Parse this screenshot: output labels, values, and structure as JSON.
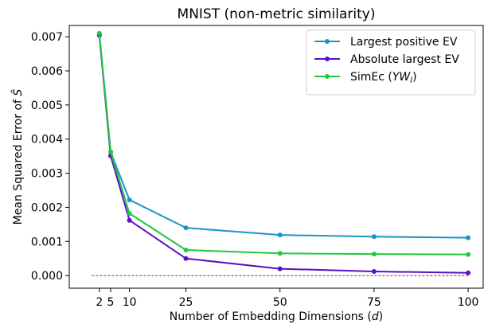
{
  "chart_data": {
    "type": "line",
    "title": "MNIST (non-metric similarity)",
    "xlabel": "Number of Embedding Dimensions (d)",
    "ylabel": "Mean Squared Error of Ŝ",
    "x": [
      2,
      5,
      10,
      25,
      50,
      75,
      100
    ],
    "xticks": [
      2,
      5,
      10,
      25,
      50,
      75,
      100
    ],
    "xlim": [
      -6,
      104
    ],
    "ylim": [
      -0.00037,
      0.00733
    ],
    "yticks": [
      0.0,
      0.001,
      0.002,
      0.003,
      0.004,
      0.005,
      0.006,
      0.007
    ],
    "ytick_labels": [
      "0.000",
      "0.001",
      "0.002",
      "0.003",
      "0.004",
      "0.005",
      "0.006",
      "0.007"
    ],
    "baseline": {
      "y": 0.0,
      "x_range": [
        0,
        100
      ],
      "style": "dashed"
    },
    "legend_position": "top-right",
    "grid": false,
    "series": [
      {
        "name": "Largest positive EV",
        "color": "#1a93c8",
        "values": [
          0.00707,
          0.00362,
          0.00222,
          0.0014,
          0.00119,
          0.00114,
          0.00111
        ]
      },
      {
        "name": "Absolute largest EV",
        "color": "#5a0fc8",
        "values": [
          0.00704,
          0.00351,
          0.00162,
          0.0005,
          0.0002,
          0.00012,
          8e-05
        ]
      },
      {
        "name": "SimEc (YW_l)",
        "color": "#1ec840",
        "values": [
          0.0071,
          0.00363,
          0.00182,
          0.00075,
          0.00065,
          0.00063,
          0.00062
        ]
      }
    ]
  }
}
